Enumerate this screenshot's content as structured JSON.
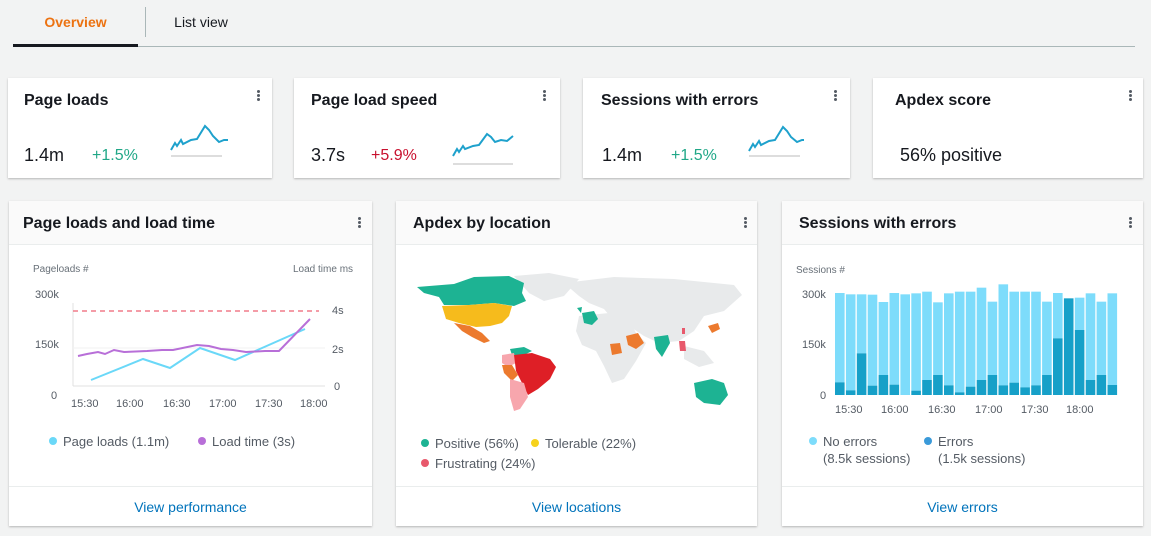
{
  "tabs": [
    {
      "label": "Overview",
      "active": true
    },
    {
      "label": "List view",
      "active": false
    }
  ],
  "colors": {
    "accent_orange": "#ec7211",
    "link_blue": "#0073bb",
    "positive_green": "#20a787",
    "negative_red": "#c8102e",
    "sparkline": "#1ea1cc",
    "page_loads_line": "#6ad8f8",
    "load_time_line": "#b86fd8",
    "threshold_dashed": "#f07c8a",
    "no_errors_bar": "#7ddcfb",
    "errors_bar": "#16a0c8",
    "apdex_positive": "#1db393",
    "apdex_tolerable": "#f6bb1c",
    "apdex_frustrating": "#e8596c",
    "map_land": "#e8eaeb"
  },
  "kpis": [
    {
      "title": "Page loads",
      "value": "1.4m",
      "delta": "+1.5%",
      "delta_type": "positive",
      "menu_icon": "kebab-icon"
    },
    {
      "title": "Page load speed",
      "value": "3.7s",
      "delta": "+5.9%",
      "delta_type": "negative",
      "menu_icon": "kebab-icon"
    },
    {
      "title": "Sessions with errors",
      "value": "1.4m",
      "delta": "+1.5%",
      "delta_type": "positive",
      "menu_icon": "kebab-icon"
    },
    {
      "title": "Apdex score",
      "value": "56% positive",
      "menu_icon": "kebab-icon"
    }
  ],
  "panels": {
    "load_time": {
      "title": "Page loads and load time",
      "left_axis_label": "Pageloads #",
      "right_axis_label": "Load time ms",
      "left_ticks": [
        "300k",
        "150k",
        "0"
      ],
      "right_ticks": [
        "4s",
        "2s",
        "0"
      ],
      "x_ticks": [
        "15:30",
        "16:00",
        "16:30",
        "17:00",
        "17:30",
        "18:00"
      ],
      "legend": [
        {
          "label": "Page loads (1.1m)",
          "color": "#6ad8f8"
        },
        {
          "label": "Load time (3s)",
          "color": "#b86fd8"
        }
      ],
      "footer_link": "View performance"
    },
    "apdex": {
      "title": "Apdex by location",
      "legend": [
        {
          "label": "Positive (56%)",
          "color": "#1db393"
        },
        {
          "label": "Tolerable (22%)",
          "color": "#f6d21c"
        },
        {
          "label": "Frustrating (24%)",
          "color": "#e8596c"
        }
      ],
      "footer_link": "View locations"
    },
    "sessions": {
      "title": "Sessions with errors",
      "axis_label": "Sessions #",
      "y_ticks": [
        "300k",
        "150k",
        "0"
      ],
      "x_ticks": [
        "15:30",
        "16:00",
        "16:30",
        "17:00",
        "17:30",
        "18:00"
      ],
      "legend": [
        {
          "label": "No errors",
          "sub": "(8.5k sessions)",
          "color": "#7ddcfb"
        },
        {
          "label": "Errors",
          "sub": "(1.5k sessions)",
          "color": "#3a9ad9"
        }
      ],
      "footer_link": "View errors"
    }
  },
  "chart_data": [
    {
      "type": "line",
      "title": "Page loads and load time",
      "xlabel": "",
      "ylabel": "Pageloads #",
      "ylabel_right": "Load time ms",
      "x_ticks": [
        "15:30",
        "16:00",
        "16:30",
        "17:00",
        "17:30",
        "18:00"
      ],
      "ylim": [
        0,
        300000
      ],
      "ylim_right": [
        0,
        4
      ],
      "threshold": {
        "axis": "right",
        "value": 4,
        "style": "dashed"
      },
      "series": [
        {
          "name": "Page loads",
          "axis": "left",
          "x": [
            "15:30",
            "16:10",
            "16:25",
            "16:50",
            "17:05",
            "17:55"
          ],
          "values": [
            25000,
            100000,
            75000,
            138000,
            105000,
            218000
          ]
        },
        {
          "name": "Load time",
          "axis": "right",
          "x": [
            "15:30",
            "15:35",
            "15:40",
            "15:45",
            "15:50",
            "15:55",
            "16:00",
            "16:10",
            "16:20",
            "16:30",
            "16:40",
            "16:45",
            "16:50",
            "17:00",
            "17:10",
            "17:20",
            "17:30",
            "17:40",
            "18:00"
          ],
          "values": [
            1.7,
            1.8,
            1.9,
            1.85,
            2.0,
            1.9,
            1.9,
            1.95,
            2.0,
            2.0,
            2.15,
            2.25,
            2.2,
            2.05,
            1.95,
            2.0,
            2.0,
            2.0,
            3.6
          ]
        }
      ],
      "legend": [
        "Page loads (1.1m)",
        "Load time (3s)"
      ],
      "legend_position": "bottom"
    },
    {
      "type": "map",
      "title": "Apdex by location",
      "categories": [
        "Positive",
        "Tolerable",
        "Frustrating"
      ],
      "values": [
        56,
        22,
        24
      ],
      "regions": {
        "Positive": [
          "Canada",
          "Alaska",
          "Greenland (partial)",
          "UK",
          "France",
          "India",
          "Australia",
          "Venezuela",
          "Colombia (part)"
        ],
        "Tolerable": [
          "United States",
          "Mexico",
          "Peru",
          "Saudi Arabia",
          "Sudan",
          "South Korea"
        ],
        "Frustrating": [
          "Brazil",
          "Paraguay",
          "Chile",
          "Argentina",
          "Ecuador",
          "Thailand",
          "China (part)"
        ]
      },
      "legend_position": "bottom"
    },
    {
      "type": "bar",
      "stacked": true,
      "title": "Sessions with errors",
      "ylabel": "Sessions #",
      "ylim": [
        0,
        300000
      ],
      "x_ticks": [
        "15:30",
        "16:00",
        "16:30",
        "17:00",
        "17:30",
        "18:00"
      ],
      "categories": [
        "b1",
        "b2",
        "b3",
        "b4",
        "b5",
        "b6",
        "b7",
        "b8",
        "b9",
        "b10",
        "b11",
        "b12",
        "b13",
        "b14",
        "b15",
        "b16",
        "b17",
        "b18",
        "b19",
        "b20",
        "b21",
        "b22",
        "b23",
        "b24",
        "b25",
        "b26"
      ],
      "series": [
        {
          "name": "Errors",
          "values": [
            38000,
            14000,
            125000,
            28000,
            60000,
            31000,
            0,
            13000,
            45000,
            60000,
            29000,
            8000,
            25000,
            45000,
            60000,
            29000,
            37000,
            23000,
            29000,
            60000,
            170000,
            290000,
            195000,
            45000,
            60000,
            30000
          ]
        },
        {
          "name": "No errors",
          "values": [
            268000,
            288000,
            177000,
            273000,
            219000,
            275000,
            302000,
            292000,
            265000,
            218000,
            276000,
            302000,
            285000,
            277000,
            220000,
            303000,
            273000,
            287000,
            281000,
            220000,
            136000,
            0,
            97000,
            260000,
            220000,
            275000
          ]
        }
      ],
      "legend": [
        "No errors (8.5k sessions)",
        "Errors (1.5k sessions)"
      ],
      "legend_position": "bottom"
    }
  ]
}
